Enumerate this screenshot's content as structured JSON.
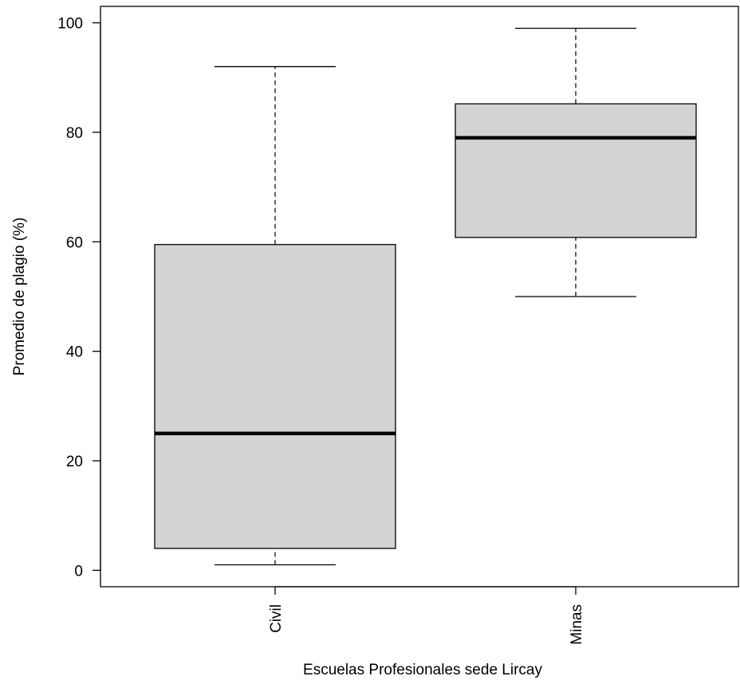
{
  "chart_data": {
    "type": "box",
    "xlabel": "Escuelas Profesionales sede Lircay",
    "ylabel": "Promedio de plagio (%)",
    "ylim": [
      -3,
      103
    ],
    "yticks": [
      0,
      20,
      40,
      60,
      80,
      100
    ],
    "grid": false,
    "categories": [
      "Civil",
      "Minas"
    ],
    "boxes": [
      {
        "category": "Civil",
        "min": 1,
        "q1": 4,
        "median": 25,
        "q3": 59.5,
        "max": 92
      },
      {
        "category": "Minas",
        "min": 50,
        "q1": 60.8,
        "median": 79,
        "q3": 85.2,
        "max": 99
      }
    ],
    "colors": {
      "box_fill": "#d3d3d3",
      "stroke": "#000000"
    }
  }
}
